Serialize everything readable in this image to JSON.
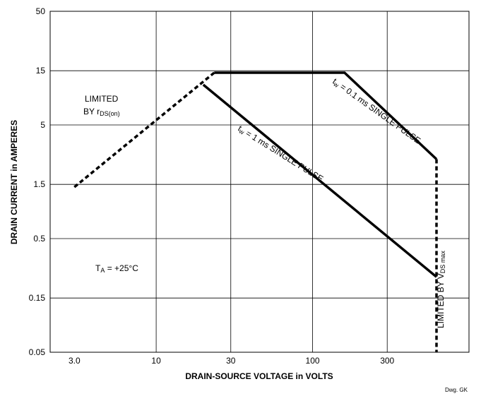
{
  "chart_data": {
    "type": "line",
    "title": "",
    "xlabel": "DRAIN-SOURCE VOLTAGE in VOLTS",
    "ylabel": "DRAIN CURRENT in AMPERES",
    "x_scale": "log",
    "y_scale": "log",
    "xlim": [
      2.1,
      1000
    ],
    "ylim": [
      0.05,
      50
    ],
    "x_ticks": [
      {
        "value": 3,
        "label": "3.0"
      },
      {
        "value": 10,
        "label": "10"
      },
      {
        "value": 30,
        "label": "30"
      },
      {
        "value": 100,
        "label": "100"
      },
      {
        "value": 300,
        "label": "300"
      }
    ],
    "y_ticks": [
      {
        "value": 0.05,
        "label": "0.05"
      },
      {
        "value": 0.15,
        "label": "0.15"
      },
      {
        "value": 0.5,
        "label": "0.5"
      },
      {
        "value": 1.5,
        "label": "1.5"
      },
      {
        "value": 5,
        "label": "5"
      },
      {
        "value": 15,
        "label": "15"
      },
      {
        "value": 50,
        "label": "50"
      }
    ],
    "grid": true,
    "series": [
      {
        "style": "dashed",
        "x": [
          3.0,
          23.5
        ],
        "y": [
          1.42,
          14.4
        ]
      },
      {
        "style": "solid",
        "x": [
          23.5,
          160,
          620
        ],
        "y": [
          14.4,
          14.4,
          2.5
        ]
      },
      {
        "style": "solid",
        "x": [
          20,
          620
        ],
        "y": [
          11.3,
          0.23
        ]
      },
      {
        "style": "dashed",
        "x": [
          620,
          620
        ],
        "y": [
          2.5,
          0.05
        ]
      }
    ],
    "annotations": {
      "limited_rds_line1": "LIMITED",
      "limited_rds_prefix": "BY r",
      "limited_rds_sub": "DS(on)",
      "pulse_01_prefix": "t",
      "pulse_01_sub": "w",
      "pulse_01_text": " = 0.1 ms SINGLE PULSE",
      "pulse_1_prefix": "t",
      "pulse_1_sub": "w",
      "pulse_1_text": " = 1 ms SINGLE PULSE",
      "ta_prefix": "T",
      "ta_sub": "A",
      "ta_text": " = +25°C",
      "vds_prefix": "LIMITED BY V",
      "vds_sub": "DS max"
    },
    "drawing_ref": "Dwg. GK"
  }
}
